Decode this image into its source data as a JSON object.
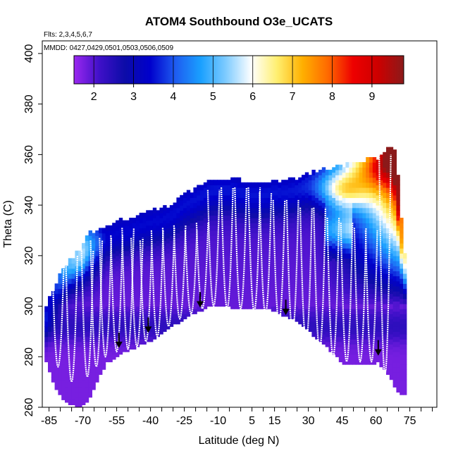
{
  "chart_data": {
    "type": "heatmap",
    "title": "ATOM4 Southbound O3e_UCATS",
    "annotations": {
      "flights": "Flts: 2,3,4,5,6,7",
      "dates": "MMDD: 0427,0429,0501,0503,0506,0509"
    },
    "xlabel": "Latitude (deg N)",
    "ylabel": "Theta (C)",
    "xlim": [
      -88,
      87
    ],
    "ylim": [
      260,
      405
    ],
    "x_ticks": [
      -85,
      -70,
      -55,
      -40,
      -25,
      -10,
      5,
      15,
      30,
      45,
      60,
      75
    ],
    "x_ticks_minor_step": 5,
    "y_ticks": [
      260,
      280,
      300,
      320,
      340,
      360,
      380,
      400
    ],
    "colorbar": {
      "min": 1.5,
      "max": 9.8,
      "ticks": [
        2,
        3,
        4,
        5,
        6,
        7,
        8,
        9
      ],
      "colors": [
        "#9b28f0",
        "#3f10c8",
        "#0c0ca8",
        "#0000cc",
        "#1e5cf0",
        "#1aa0ff",
        "#80ccff",
        "#ffffff",
        "#ffef70",
        "#ffb000",
        "#ff6a00",
        "#ee0000",
        "#cc0000",
        "#8b1a1a"
      ]
    },
    "field_boundary": {
      "lat": [
        -87,
        -83,
        -78,
        -72,
        -68,
        -64,
        -60,
        -55,
        -50,
        -45,
        -40,
        -35,
        -30,
        -25,
        -20,
        -15,
        -10,
        -5,
        0,
        5,
        10,
        15,
        20,
        25,
        30,
        35,
        40,
        45,
        50,
        55,
        60,
        65,
        68,
        70,
        72
      ],
      "theta_bottom": [
        278,
        268,
        262,
        260,
        263,
        272,
        278,
        281,
        283,
        285,
        287,
        290,
        293,
        296,
        298,
        300,
        301,
        300,
        299,
        299,
        300,
        298,
        296,
        294,
        290,
        286,
        282,
        277,
        277,
        277,
        278,
        273,
        268,
        265,
        265
      ],
      "theta_top": [
        300,
        308,
        316,
        322,
        328,
        330,
        331,
        333,
        334,
        336,
        337,
        338,
        340,
        344,
        346,
        349,
        350,
        350,
        349,
        348,
        348,
        349,
        349,
        350,
        352,
        353,
        354,
        355,
        356,
        357,
        358,
        362,
        362,
        340,
        320
      ]
    },
    "profiles": [
      {
        "lat": -81,
        "top": 318,
        "bottom": 276
      },
      {
        "lat": -75,
        "top": 320,
        "bottom": 270
      },
      {
        "lat": -68,
        "top": 322,
        "bottom": 272
      },
      {
        "lat": -64,
        "top": 326,
        "bottom": 276
      },
      {
        "lat": -60,
        "top": 327,
        "bottom": 280
      },
      {
        "lat": -55,
        "top": 328,
        "bottom": 282
      },
      {
        "lat": -50,
        "top": 331,
        "bottom": 283
      },
      {
        "lat": -46,
        "top": 327,
        "bottom": 284
      },
      {
        "lat": -42,
        "top": 326,
        "bottom": 286
      },
      {
        "lat": -37,
        "top": 330,
        "bottom": 288
      },
      {
        "lat": -32,
        "top": 331,
        "bottom": 292
      },
      {
        "lat": -27,
        "top": 332,
        "bottom": 295
      },
      {
        "lat": -22,
        "top": 330,
        "bottom": 297
      },
      {
        "lat": -17,
        "top": 333,
        "bottom": 299
      },
      {
        "lat": -12,
        "top": 346,
        "bottom": 300
      },
      {
        "lat": -6,
        "top": 347,
        "bottom": 299
      },
      {
        "lat": 0,
        "top": 347,
        "bottom": 299
      },
      {
        "lat": 6,
        "top": 347,
        "bottom": 298
      },
      {
        "lat": 11,
        "top": 345,
        "bottom": 297
      },
      {
        "lat": 17,
        "top": 342,
        "bottom": 294
      },
      {
        "lat": 23,
        "top": 342,
        "bottom": 290
      },
      {
        "lat": 29,
        "top": 339,
        "bottom": 286
      },
      {
        "lat": 35,
        "top": 339,
        "bottom": 283
      },
      {
        "lat": 41,
        "top": 335,
        "bottom": 280
      },
      {
        "lat": 47,
        "top": 333,
        "bottom": 278
      },
      {
        "lat": 53,
        "top": 331,
        "bottom": 278
      },
      {
        "lat": 58,
        "top": 330,
        "bottom": 278
      },
      {
        "lat": 64,
        "top": 360,
        "bottom": 273
      }
    ],
    "arrows": [
      {
        "lat": -54,
        "theta": 284
      },
      {
        "lat": -41,
        "theta": 290
      },
      {
        "lat": -18,
        "theta": 300
      },
      {
        "lat": 20,
        "theta": 297
      },
      {
        "lat": 61,
        "theta": 281
      }
    ]
  }
}
